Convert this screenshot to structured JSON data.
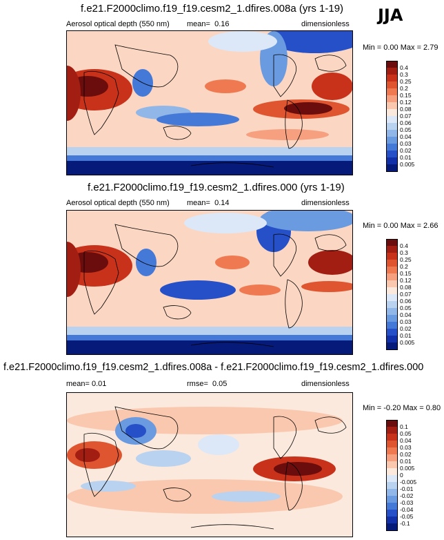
{
  "season": "JJA",
  "panels": [
    {
      "title": "f.e21.F2000climo.f19_f19.cesm2_1.dfires.008a (yrs 1-19)",
      "left_label": "Aerosol optical depth (550 nm)",
      "mid_label": "mean=",
      "mid_value": "0.16",
      "units": "dimensionless",
      "minmax": "Min =  0.00 Max =  2.79",
      "colorbar_levels": [
        "0.4",
        "0.3",
        "0.25",
        "0.2",
        "0.15",
        "0.12",
        "0.08",
        "0.07",
        "0.06",
        "0.05",
        "0.04",
        "0.03",
        "0.02",
        "0.01",
        "0.005"
      ],
      "colorbar_colors": [
        "#6b0d0d",
        "#a31e12",
        "#c8321a",
        "#de5530",
        "#ef7a52",
        "#f6a07f",
        "#fac8ae",
        "#fbe9dd",
        "#dce8f7",
        "#b8d2f0",
        "#90b7e8",
        "#6a9ae0",
        "#4479d8",
        "#2550c7",
        "#1230a8",
        "#061a7a"
      ]
    },
    {
      "title": "f.e21.F2000climo.f19_f19.cesm2_1.dfires.000 (yrs 1-19)",
      "left_label": "Aerosol optical depth (550 nm)",
      "mid_label": "mean=",
      "mid_value": "0.14",
      "units": "dimensionless",
      "minmax": "Min =  0.00 Max =  2.66",
      "colorbar_levels": [
        "0.4",
        "0.3",
        "0.25",
        "0.2",
        "0.15",
        "0.12",
        "0.08",
        "0.07",
        "0.06",
        "0.05",
        "0.04",
        "0.03",
        "0.02",
        "0.01",
        "0.005"
      ],
      "colorbar_colors": [
        "#6b0d0d",
        "#a31e12",
        "#c8321a",
        "#de5530",
        "#ef7a52",
        "#f6a07f",
        "#fac8ae",
        "#fbe9dd",
        "#dce8f7",
        "#b8d2f0",
        "#90b7e8",
        "#6a9ae0",
        "#4479d8",
        "#2550c7",
        "#1230a8",
        "#061a7a"
      ]
    },
    {
      "title": "f.e21.F2000climo.f19_f19.cesm2_1.dfires.008a - f.e21.F2000climo.f19_f19.cesm2_1.dfires.000",
      "left_label": "mean=  0.01",
      "mid_label": "rmse=",
      "mid_value": "0.05",
      "units": "dimensionless",
      "minmax": "Min = -0.20 Max =  0.80",
      "colorbar_levels": [
        "0.1",
        "0.05",
        "0.04",
        "0.03",
        "0.02",
        "0.01",
        "0.005",
        "0",
        "-0.005",
        "-0.01",
        "-0.02",
        "-0.03",
        "-0.04",
        "-0.05",
        "-0.1"
      ],
      "colorbar_colors": [
        "#6b0d0d",
        "#a31e12",
        "#c8321a",
        "#de5530",
        "#ef7a52",
        "#f6a07f",
        "#fac8ae",
        "#fbe9dd",
        "#dce8f7",
        "#b8d2f0",
        "#90b7e8",
        "#6a9ae0",
        "#4479d8",
        "#2550c7",
        "#1230a8",
        "#061a7a"
      ]
    }
  ],
  "colors": {
    "background_field": "#fbd6c2",
    "coastline": "#000000"
  }
}
